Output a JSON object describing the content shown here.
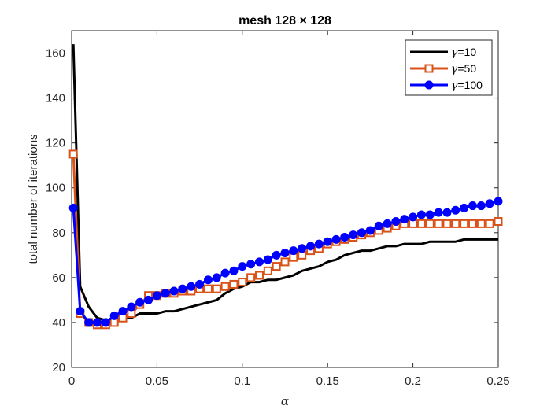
{
  "chart_data": {
    "type": "line",
    "title": "mesh 128 × 128",
    "xlabel": "α",
    "ylabel": "total number of iterations",
    "xlim": [
      0,
      0.25
    ],
    "ylim": [
      20,
      170
    ],
    "xticks": [
      0,
      0.05,
      0.1,
      0.15,
      0.2,
      0.25
    ],
    "xtick_labels": [
      "0",
      "0.05",
      "0.1",
      "0.15",
      "0.2",
      "0.25"
    ],
    "yticks": [
      20,
      40,
      60,
      80,
      100,
      120,
      140,
      160
    ],
    "ytick_labels": [
      "20",
      "40",
      "60",
      "80",
      "100",
      "120",
      "140",
      "160"
    ],
    "grid": false,
    "legend_position": "top-right",
    "series": [
      {
        "name": "γ=10",
        "legend_prefix": "γ",
        "legend_suffix": "=10",
        "color": "#000000",
        "marker": "none",
        "x": [
          0.001,
          0.005,
          0.01,
          0.015,
          0.02,
          0.025,
          0.03,
          0.035,
          0.04,
          0.045,
          0.05,
          0.055,
          0.06,
          0.065,
          0.07,
          0.075,
          0.08,
          0.085,
          0.09,
          0.095,
          0.1,
          0.105,
          0.11,
          0.115,
          0.12,
          0.125,
          0.13,
          0.135,
          0.14,
          0.145,
          0.15,
          0.155,
          0.16,
          0.165,
          0.17,
          0.175,
          0.18,
          0.185,
          0.19,
          0.195,
          0.2,
          0.205,
          0.21,
          0.215,
          0.22,
          0.225,
          0.23,
          0.235,
          0.24,
          0.245,
          0.25
        ],
        "y": [
          164,
          56,
          47,
          42,
          41,
          41,
          42,
          42,
          44,
          44,
          44,
          45,
          45,
          46,
          47,
          48,
          49,
          50,
          53,
          55,
          56,
          58,
          58,
          59,
          59,
          60,
          61,
          63,
          64,
          65,
          67,
          68,
          70,
          71,
          72,
          72,
          73,
          74,
          74,
          75,
          75,
          75,
          76,
          76,
          76,
          76,
          77,
          77,
          77,
          77,
          77
        ]
      },
      {
        "name": "γ=50",
        "legend_prefix": "γ",
        "legend_suffix": "=50",
        "color": "#d95319",
        "marker": "square",
        "x": [
          0.001,
          0.005,
          0.01,
          0.015,
          0.02,
          0.025,
          0.03,
          0.035,
          0.04,
          0.045,
          0.05,
          0.055,
          0.06,
          0.065,
          0.07,
          0.075,
          0.08,
          0.085,
          0.09,
          0.095,
          0.1,
          0.105,
          0.11,
          0.115,
          0.12,
          0.125,
          0.13,
          0.135,
          0.14,
          0.145,
          0.15,
          0.155,
          0.16,
          0.165,
          0.17,
          0.175,
          0.18,
          0.185,
          0.19,
          0.195,
          0.2,
          0.205,
          0.21,
          0.215,
          0.22,
          0.225,
          0.23,
          0.235,
          0.24,
          0.245,
          0.25
        ],
        "y": [
          115,
          44,
          40,
          39,
          39,
          40,
          42,
          44,
          48,
          52,
          52,
          53,
          53,
          54,
          54,
          55,
          55,
          55,
          56,
          57,
          58,
          60,
          61,
          63,
          65,
          67,
          69,
          70,
          72,
          73,
          75,
          76,
          77,
          78,
          79,
          80,
          81,
          82,
          83,
          84,
          84,
          84,
          84,
          84,
          84,
          84,
          84,
          84,
          84,
          84,
          85
        ]
      },
      {
        "name": "γ=100",
        "legend_prefix": "γ",
        "legend_suffix": "=100",
        "color": "#0000ff",
        "marker": "circle",
        "x": [
          0.001,
          0.005,
          0.01,
          0.015,
          0.02,
          0.025,
          0.03,
          0.035,
          0.04,
          0.045,
          0.05,
          0.055,
          0.06,
          0.065,
          0.07,
          0.075,
          0.08,
          0.085,
          0.09,
          0.095,
          0.1,
          0.105,
          0.11,
          0.115,
          0.12,
          0.125,
          0.13,
          0.135,
          0.14,
          0.145,
          0.15,
          0.155,
          0.16,
          0.165,
          0.17,
          0.175,
          0.18,
          0.185,
          0.19,
          0.195,
          0.2,
          0.205,
          0.21,
          0.215,
          0.22,
          0.225,
          0.23,
          0.235,
          0.24,
          0.245,
          0.25
        ],
        "y": [
          91,
          45,
          40,
          40,
          40,
          43,
          45,
          47,
          49,
          50,
          52,
          53,
          54,
          55,
          56,
          57,
          59,
          60,
          62,
          63,
          65,
          66,
          67,
          68,
          70,
          71,
          72,
          73,
          74,
          75,
          76,
          77,
          78,
          79,
          80,
          81,
          83,
          84,
          85,
          86,
          87,
          88,
          88,
          89,
          89,
          90,
          91,
          92,
          92,
          93,
          94
        ]
      }
    ]
  }
}
